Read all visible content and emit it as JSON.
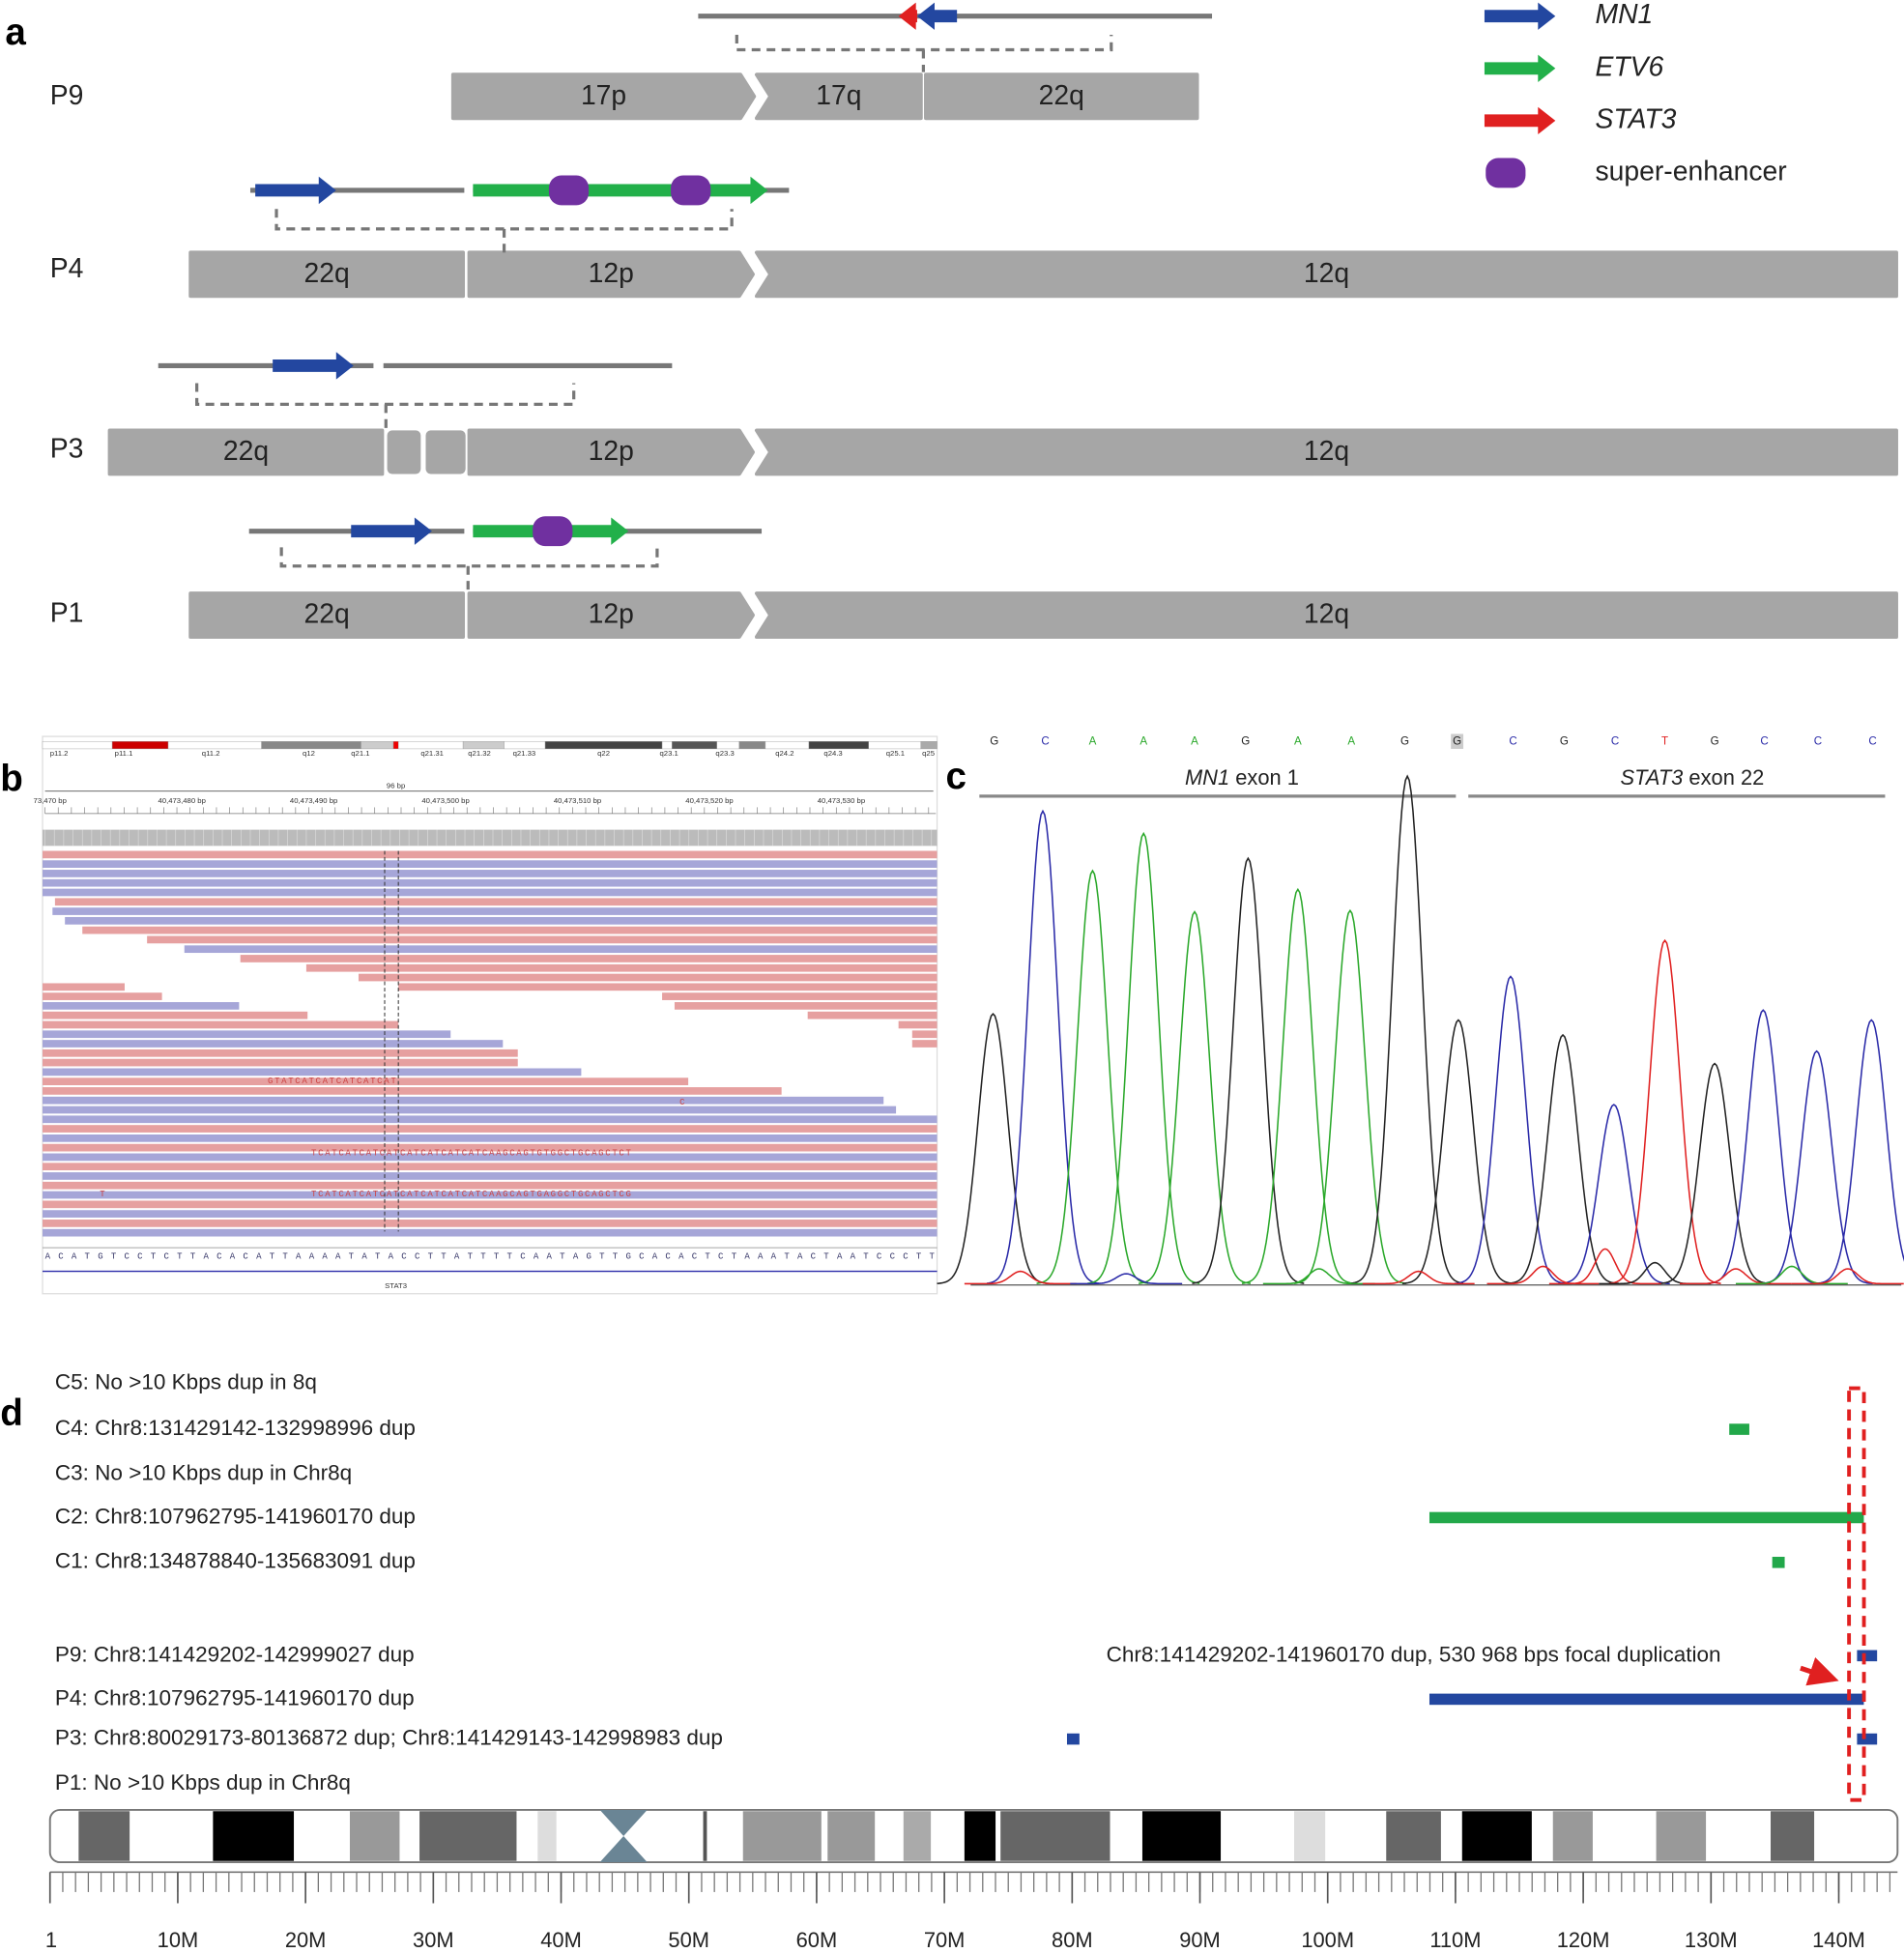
{
  "panel_a": {
    "label": "a",
    "rows": [
      {
        "name": "P9",
        "blocks": [
          "17p",
          "17q",
          "22q"
        ]
      },
      {
        "name": "P4",
        "blocks": [
          "22q",
          "12p",
          "12q"
        ]
      },
      {
        "name": "P3",
        "blocks": [
          "22q",
          "12p",
          "12q"
        ]
      },
      {
        "name": "P1",
        "blocks": [
          "22q",
          "12p",
          "12q"
        ]
      }
    ],
    "legend": [
      "MN1",
      "ETV6",
      "STAT3",
      "super-enhancer"
    ]
  },
  "panel_b": {
    "label": "b",
    "cytobands": [
      "p11.2",
      "p11.1",
      "q11.2",
      "q12",
      "q21.1",
      "q21.31",
      "q21.32",
      "q21.33",
      "q22",
      "q23.1",
      "q23.3",
      "q24.2",
      "q24.3",
      "q25.1",
      "q25"
    ],
    "scale": "96 bp",
    "positions": [
      "73,470 bp",
      "40,473,480 bp",
      "40,473,490 bp",
      "40,473,500 bp",
      "40,473,510 bp",
      "40,473,520 bp",
      "40,473,530 bp"
    ],
    "read_text": [
      "GTATCATCATCATCATCAT",
      "C",
      "TCATCATCATCATCATCATCATCATCAAGCAGTGTGGCTGCAGCTCT",
      "T",
      "TCATCATCATCATCATCATCATCATCAAGCAGTGAGGCTGCAGCTCG"
    ],
    "reference": "ACATGTCCTCTTACACATTAAAATATACCTTATTTTCAATAGTTGCACACTCTAAATACTAATCCCTT",
    "gene": "STAT3"
  },
  "panel_c": {
    "label": "c",
    "bases": [
      "G",
      "C",
      "A",
      "A",
      "A",
      "G",
      "A",
      "A",
      "G",
      "G",
      "C",
      "G",
      "C",
      "T",
      "G",
      "C",
      "C",
      "C"
    ],
    "exons": [
      {
        "gene": "MN1",
        "text": "exon 1"
      },
      {
        "gene": "STAT3",
        "text": "exon 22"
      }
    ]
  },
  "chart_data": {
    "type": "segment",
    "label": "d",
    "rows": [
      {
        "label": "C5: No >10 Kbps dup in 8q",
        "segments": []
      },
      {
        "label": "C4: Chr8:131429142-132998996 dup",
        "color": "#22a84a",
        "segments": [
          [
            131429142,
            132998996
          ]
        ]
      },
      {
        "label": "C3: No >10 Kbps dup in Chr8q",
        "segments": []
      },
      {
        "label": "C2: Chr8:107962795-141960170 dup",
        "color": "#22a84a",
        "segments": [
          [
            107962795,
            141960170
          ]
        ]
      },
      {
        "label": "C1: Chr8:134878840-135683091 dup",
        "color": "#22a84a",
        "segments": [
          [
            134878840,
            135683091
          ]
        ]
      },
      {
        "label": "P9: Chr8:141429202-142999027 dup",
        "color": "#2347a0",
        "segments": [
          [
            141429202,
            142999027
          ]
        ]
      },
      {
        "label": "P4: Chr8:107962795-141960170 dup",
        "color": "#2347a0",
        "segments": [
          [
            107962795,
            141960170
          ]
        ]
      },
      {
        "label": "P3: Chr8:80029173-80136872 dup; Chr8:141429143-142998983 dup",
        "color": "#2347a0",
        "segments": [
          [
            80029173,
            80136872
          ],
          [
            141429143,
            142998983
          ]
        ]
      },
      {
        "label": "P1: No >10 Kbps dup in Chr8q",
        "segments": []
      }
    ],
    "annotation": "Chr8:141429202-141960170 dup, 530 968 bps focal duplication",
    "xlim": [
      1,
      144600000
    ],
    "xticks": [
      1,
      {
        "value": 10000000,
        "label": "10M"
      },
      {
        "value": 20000000,
        "label": "20M"
      },
      {
        "value": 30000000,
        "label": "30M"
      },
      {
        "value": 40000000,
        "label": "40M"
      },
      {
        "value": 50000000,
        "label": "50M"
      },
      {
        "value": 60000000,
        "label": "60M"
      },
      {
        "value": 70000000,
        "label": "70M"
      },
      {
        "value": 80000000,
        "label": "80M"
      },
      {
        "value": 90000000,
        "label": "90M"
      },
      {
        "value": 100000000,
        "label": "100M"
      },
      {
        "value": 110000000,
        "label": "110M"
      },
      {
        "value": 120000000,
        "label": "120M"
      },
      {
        "value": 130000000,
        "label": "130M"
      },
      {
        "value": 140000000,
        "label": "140M"
      }
    ]
  }
}
